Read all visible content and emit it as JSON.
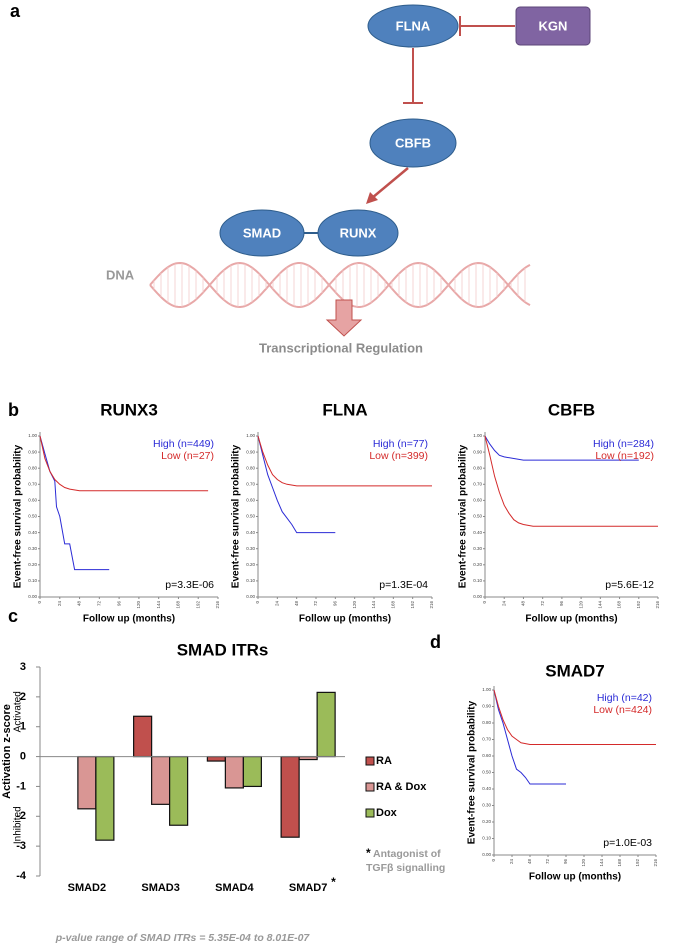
{
  "panel_labels": [
    "a",
    "b",
    "c",
    "d"
  ],
  "diagram": {
    "nodes": [
      "FLNA",
      "KGN",
      "CBFB",
      "SMAD",
      "RUNX"
    ],
    "dna": "DNA",
    "output": "Transcriptional Regulation"
  },
  "chart_data": [
    {
      "type": "line",
      "title": "RUNX3",
      "xlabel": "Follow up (months)",
      "ylabel": "Event-free survival probability",
      "annotation": "p=3.3E-06",
      "xlim": [
        0,
        216
      ],
      "xticks": [
        0,
        24,
        48,
        72,
        96,
        120,
        144,
        168,
        192,
        216
      ],
      "ylim": [
        0,
        1
      ],
      "yticks": [
        {
          "value": 0,
          "label": "0.00"
        },
        {
          "value": 0.1,
          "label": "0.10"
        },
        {
          "value": 0.2,
          "label": "0.20"
        },
        {
          "value": 0.3,
          "label": "0.30"
        },
        {
          "value": 0.4,
          "label": "0.40"
        },
        {
          "value": 0.5,
          "label": "0.50"
        },
        {
          "value": 0.6,
          "label": "0.60"
        },
        {
          "value": 0.7,
          "label": "0.70"
        },
        {
          "value": 0.8,
          "label": "0.80"
        },
        {
          "value": 0.9,
          "label": "0.90"
        },
        {
          "value": 1,
          "label": "1.00"
        }
      ],
      "series": [
        {
          "name": "High (n=449)",
          "color": "#2b2bd6",
          "x": [
            0,
            6,
            12,
            18,
            20,
            24,
            30,
            36,
            42,
            48,
            84
          ],
          "values": [
            1,
            0.89,
            0.78,
            0.72,
            0.56,
            0.5,
            0.33,
            0.33,
            0.17,
            0.17,
            0.17
          ]
        },
        {
          "name": "Low (n=27)",
          "color": "#d42a2a",
          "x": [
            0,
            6,
            12,
            18,
            24,
            30,
            36,
            48,
            60,
            96,
            144,
            204
          ],
          "values": [
            1,
            0.86,
            0.78,
            0.73,
            0.7,
            0.68,
            0.67,
            0.66,
            0.66,
            0.66,
            0.66,
            0.66
          ]
        }
      ]
    },
    {
      "type": "line",
      "title": "FLNA",
      "xlabel": "Follow up (months)",
      "ylabel": "Event-free survival probability",
      "annotation": "p=1.3E-04",
      "xlim": [
        0,
        216
      ],
      "xticks": [
        0,
        24,
        48,
        72,
        96,
        120,
        144,
        168,
        192,
        216
      ],
      "ylim": [
        0,
        1
      ],
      "yticks": [
        {
          "value": 0,
          "label": "0.00"
        },
        {
          "value": 0.1,
          "label": "0.10"
        },
        {
          "value": 0.2,
          "label": "0.20"
        },
        {
          "value": 0.3,
          "label": "0.30"
        },
        {
          "value": 0.4,
          "label": "0.40"
        },
        {
          "value": 0.5,
          "label": "0.50"
        },
        {
          "value": 0.6,
          "label": "0.60"
        },
        {
          "value": 0.7,
          "label": "0.70"
        },
        {
          "value": 0.8,
          "label": "0.80"
        },
        {
          "value": 0.9,
          "label": "0.90"
        },
        {
          "value": 1,
          "label": "1.00"
        }
      ],
      "series": [
        {
          "name": "High (n=77)",
          "color": "#2b2bd6",
          "x": [
            0,
            6,
            12,
            18,
            24,
            30,
            36,
            42,
            48,
            60,
            72,
            96
          ],
          "values": [
            1,
            0.88,
            0.76,
            0.68,
            0.6,
            0.53,
            0.49,
            0.45,
            0.4,
            0.4,
            0.4,
            0.4
          ]
        },
        {
          "name": "Low (n=399)",
          "color": "#d42a2a",
          "x": [
            0,
            6,
            12,
            18,
            24,
            30,
            36,
            48,
            72,
            120,
            168,
            216
          ],
          "values": [
            1,
            0.9,
            0.82,
            0.76,
            0.73,
            0.71,
            0.7,
            0.69,
            0.69,
            0.69,
            0.69,
            0.69
          ]
        }
      ]
    },
    {
      "type": "line",
      "title": "CBFB",
      "xlabel": "Follow up (months)",
      "ylabel": "Event-free survival probability",
      "annotation": "p=5.6E-12",
      "xlim": [
        0,
        216
      ],
      "xticks": [
        0,
        24,
        48,
        72,
        96,
        120,
        144,
        168,
        192,
        216
      ],
      "ylim": [
        0,
        1
      ],
      "yticks": [
        {
          "value": 0,
          "label": "0.00"
        },
        {
          "value": 0.1,
          "label": "0.10"
        },
        {
          "value": 0.2,
          "label": "0.20"
        },
        {
          "value": 0.3,
          "label": "0.30"
        },
        {
          "value": 0.4,
          "label": "0.40"
        },
        {
          "value": 0.5,
          "label": "0.50"
        },
        {
          "value": 0.6,
          "label": "0.60"
        },
        {
          "value": 0.7,
          "label": "0.70"
        },
        {
          "value": 0.8,
          "label": "0.80"
        },
        {
          "value": 0.9,
          "label": "0.90"
        },
        {
          "value": 1,
          "label": "1.00"
        }
      ],
      "series": [
        {
          "name": "High (n=284)",
          "color": "#2b2bd6",
          "x": [
            0,
            6,
            12,
            18,
            24,
            36,
            48,
            72,
            120,
            168,
            192
          ],
          "values": [
            1,
            0.95,
            0.91,
            0.88,
            0.87,
            0.86,
            0.85,
            0.85,
            0.85,
            0.85,
            0.85
          ]
        },
        {
          "name": "Low (n=192)",
          "color": "#d42a2a",
          "x": [
            0,
            6,
            12,
            18,
            24,
            30,
            36,
            42,
            48,
            60,
            96,
            144,
            216
          ],
          "values": [
            1,
            0.88,
            0.75,
            0.65,
            0.57,
            0.52,
            0.48,
            0.46,
            0.45,
            0.44,
            0.44,
            0.44,
            0.44
          ]
        }
      ]
    },
    {
      "type": "bar",
      "title": "SMAD ITRs",
      "ylabel": "Activation z-score",
      "y_annotations": [
        "Activated",
        "Inhibited"
      ],
      "categories": [
        "SMAD2",
        "SMAD3",
        "SMAD4",
        "SMAD7"
      ],
      "category_marker": "*",
      "note_marker": "*",
      "note": "Antagonist of TGFβ signalling",
      "caption": "p-value range of SMAD ITRs = 5.35E-04 to 8.01E-07",
      "ylim": [
        -4,
        3
      ],
      "yticks": [
        -4,
        -3,
        -2,
        -1,
        0,
        1,
        2,
        3
      ],
      "series": [
        {
          "name": "RA",
          "color": "#c0504d",
          "values": [
            null,
            1.35,
            -0.15,
            -2.7
          ]
        },
        {
          "name": "RA & Dox",
          "color": "#d99694",
          "values": [
            -1.75,
            -1.6,
            -1.05,
            -0.1
          ]
        },
        {
          "name": "Dox",
          "color": "#9bbb59",
          "values": [
            -2.8,
            -2.3,
            -1.0,
            2.15
          ]
        }
      ]
    },
    {
      "type": "line",
      "title": "SMAD7",
      "xlabel": "Follow up (months)",
      "ylabel": "Event-free survival probability",
      "annotation": "p=1.0E-03",
      "xlim": [
        0,
        216
      ],
      "xticks": [
        0,
        24,
        48,
        72,
        96,
        120,
        144,
        168,
        192,
        216
      ],
      "ylim": [
        0,
        1
      ],
      "yticks": [
        {
          "value": 0,
          "label": "0.00"
        },
        {
          "value": 0.1,
          "label": "0.10"
        },
        {
          "value": 0.2,
          "label": "0.20"
        },
        {
          "value": 0.3,
          "label": "0.30"
        },
        {
          "value": 0.4,
          "label": "0.40"
        },
        {
          "value": 0.5,
          "label": "0.50"
        },
        {
          "value": 0.6,
          "label": "0.60"
        },
        {
          "value": 0.7,
          "label": "0.70"
        },
        {
          "value": 0.8,
          "label": "0.80"
        },
        {
          "value": 0.9,
          "label": "0.90"
        },
        {
          "value": 1,
          "label": "1.00"
        }
      ],
      "series": [
        {
          "name": "High (n=42)",
          "color": "#2b2bd6",
          "x": [
            0,
            6,
            12,
            18,
            24,
            30,
            36,
            42,
            48,
            72,
            96
          ],
          "values": [
            1,
            0.88,
            0.8,
            0.7,
            0.6,
            0.52,
            0.5,
            0.47,
            0.43,
            0.43,
            0.43
          ]
        },
        {
          "name": "Low (n=424)",
          "color": "#d42a2a",
          "x": [
            0,
            6,
            12,
            18,
            24,
            30,
            36,
            48,
            72,
            120,
            168,
            216
          ],
          "values": [
            1,
            0.9,
            0.82,
            0.76,
            0.72,
            0.7,
            0.68,
            0.67,
            0.67,
            0.67,
            0.67,
            0.67
          ]
        }
      ]
    }
  ]
}
